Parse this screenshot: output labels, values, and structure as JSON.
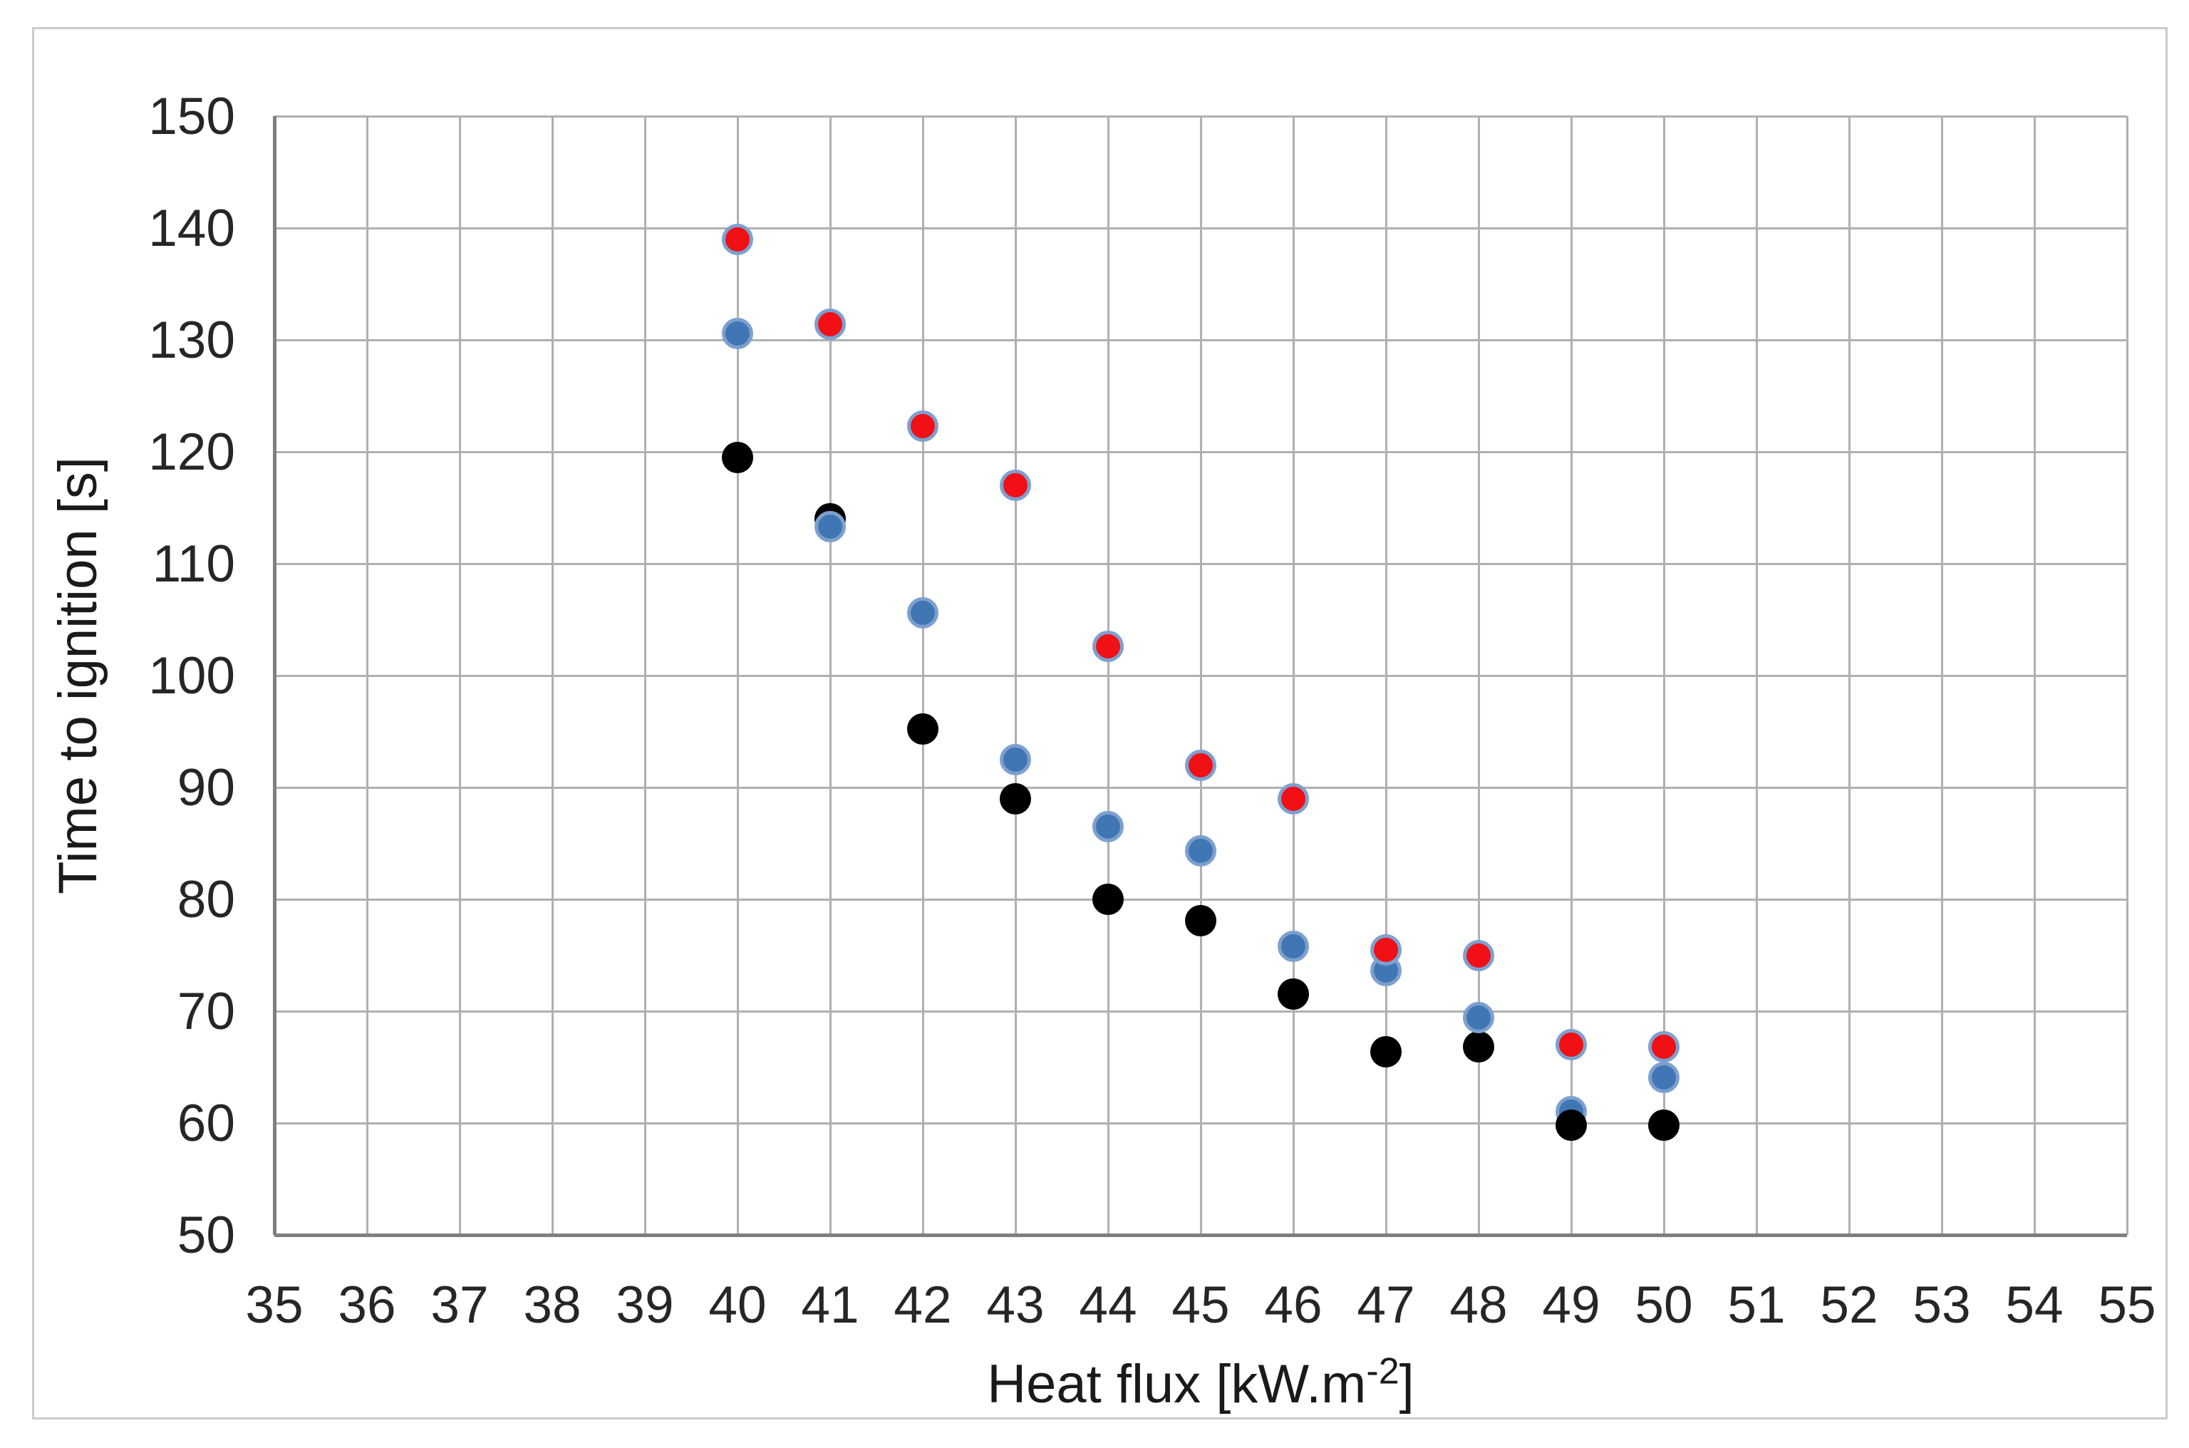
{
  "figure": {
    "background_color": "#ffffff",
    "border_color": "#cccccc",
    "gridline_color": "#b0b0b0",
    "axis_line_color": "#7f7f7f",
    "tick_text_color": "#262626"
  },
  "chart_data": {
    "type": "scatter",
    "title": "",
    "xlabel": "Heat flux [kW.m⁻²]",
    "xlabel_parts": {
      "base": "Heat flux  [kW.m",
      "superscript": "-2",
      "close": "]"
    },
    "ylabel": "Time to ignition [s]",
    "xlim": [
      35,
      55
    ],
    "ylim": [
      50,
      150
    ],
    "x_ticks": [
      35,
      36,
      37,
      38,
      39,
      40,
      41,
      42,
      43,
      44,
      45,
      46,
      47,
      48,
      49,
      50,
      51,
      52,
      53,
      54,
      55
    ],
    "y_ticks": [
      50,
      60,
      70,
      80,
      90,
      100,
      110,
      120,
      130,
      140,
      150
    ],
    "grid": true,
    "legend_position": "none",
    "series": [
      {
        "name": "black",
        "color": "#000000",
        "border_color": null,
        "points": [
          [
            40,
            119.5
          ],
          [
            41,
            114.0
          ],
          [
            42,
            95.2
          ],
          [
            43,
            89.0
          ],
          [
            44,
            80.0
          ],
          [
            45,
            78.1
          ],
          [
            46,
            71.5
          ],
          [
            47,
            66.4
          ],
          [
            48,
            66.8
          ],
          [
            49,
            59.8,
            4
          ],
          [
            50,
            59.8
          ]
        ]
      },
      {
        "name": "blue",
        "color": "#4076b4",
        "border_color": "#7da0cf",
        "points": [
          [
            40,
            130.6
          ],
          [
            41,
            113.3
          ],
          [
            42,
            105.6
          ],
          [
            43,
            92.5
          ],
          [
            44,
            86.5
          ],
          [
            45,
            84.3
          ],
          [
            46,
            75.8
          ],
          [
            47,
            73.6
          ],
          [
            48,
            69.4
          ],
          [
            49,
            61.0
          ],
          [
            50,
            64.1
          ]
        ]
      },
      {
        "name": "red",
        "color": "#f01015",
        "border_color": "#7da0cf",
        "points": [
          [
            40,
            139.0
          ],
          [
            41,
            131.4
          ],
          [
            42,
            122.3
          ],
          [
            43,
            117.0
          ],
          [
            44,
            102.6
          ],
          [
            45,
            92.0
          ],
          [
            46,
            89.0
          ],
          [
            47,
            75.5
          ],
          [
            48,
            75.0
          ],
          [
            49,
            67.0
          ],
          [
            50,
            66.8
          ]
        ]
      }
    ]
  }
}
